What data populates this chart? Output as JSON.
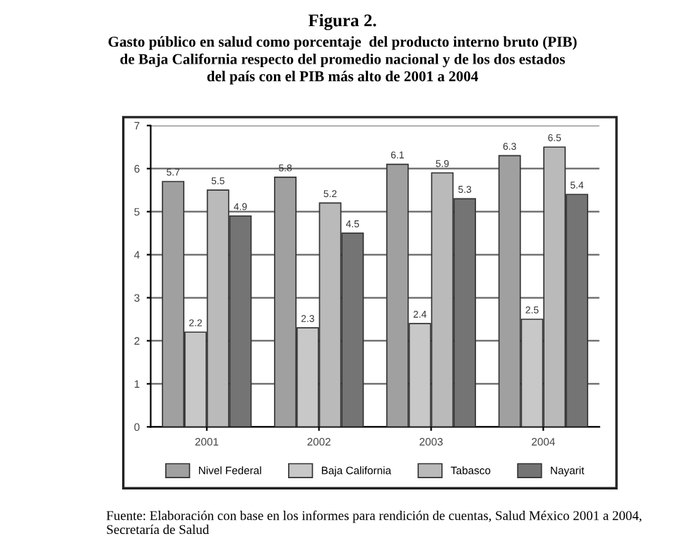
{
  "chart_data": {
    "type": "bar",
    "title": "Figura 2.",
    "subtitle": "Gasto público en salud como porcentaje  del producto interno bruto (PIB)\nde Baja California respecto del promedio nacional y de los dos estados\ndel país con el PIB más alto de 2001 a 2004",
    "categories": [
      "2001",
      "2002",
      "2003",
      "2004"
    ],
    "series": [
      {
        "name": "Nivel Federal",
        "color": "#a0a0a0",
        "values": [
          5.7,
          5.8,
          6.1,
          6.3
        ]
      },
      {
        "name": "Baja California",
        "color": "#c8c8c8",
        "values": [
          2.2,
          2.3,
          2.4,
          2.5
        ]
      },
      {
        "name": "Tabasco",
        "color": "#bababa",
        "values": [
          5.5,
          5.2,
          5.9,
          6.5
        ]
      },
      {
        "name": "Nayarit",
        "color": "#747474",
        "values": [
          4.9,
          4.5,
          5.3,
          5.4
        ]
      }
    ],
    "ylim": [
      0,
      7
    ],
    "yticks": [
      0,
      1,
      2,
      3,
      4,
      5,
      6,
      7
    ],
    "grid": "y",
    "legend": "bottom",
    "data_labels": true,
    "annotations": [
      "Fuente: Elaboración con base en los informes para rendición de cuentas, Salud México 2001 a 2004, Secretaría de Salud"
    ]
  }
}
